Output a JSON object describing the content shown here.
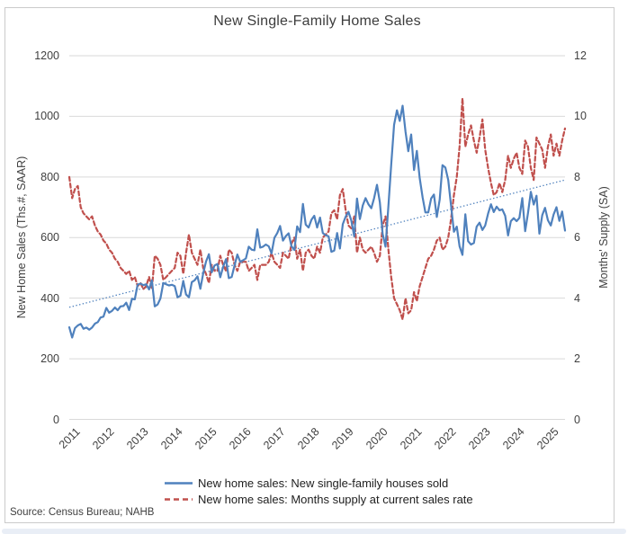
{
  "page": {
    "title": "New Single-Family Home Sales",
    "source_note": "Source: Census Bureau; NAHB"
  },
  "colors": {
    "sales": "#4F81BD",
    "supply": "#C0504D",
    "trend": "#4F81BD",
    "grid": "#D9D9D9",
    "text": "#404040"
  },
  "legend": {
    "sales_label": "New home sales: New single-family houses sold",
    "supply_label": "New home sales: Months supply at current sales rate"
  },
  "chart_data": {
    "type": "line",
    "title": "New Single-Family Home Sales",
    "frequency": "monthly",
    "x_start": "2011-01",
    "x_end": "2025-07",
    "x_tick_years": [
      "2011",
      "2012",
      "2013",
      "2014",
      "2015",
      "2016",
      "2017",
      "2018",
      "2019",
      "2020",
      "2021",
      "2022",
      "2023",
      "2024",
      "2025"
    ],
    "grid": "horizontal",
    "legend_position": "bottom",
    "left_axis": {
      "label": "New Home Sales (Ths.#, SAAR)",
      "min": 0,
      "max": 1200,
      "ticks": [
        0,
        200,
        400,
        600,
        800,
        1000,
        1200
      ]
    },
    "right_axis": {
      "label": "Months' Supply (SA)",
      "min": 0,
      "max": 12,
      "ticks": [
        0,
        2,
        4,
        6,
        8,
        10,
        12
      ]
    },
    "series": [
      {
        "name": "New home sales: New single-family houses sold",
        "axis": "left",
        "style": "solid",
        "color": "#4F81BD",
        "values": [
          304,
          270,
          301,
          310,
          315,
          299,
          303,
          296,
          303,
          316,
          321,
          336,
          339,
          368,
          352,
          358,
          369,
          360,
          373,
          374,
          385,
          361,
          398,
          396,
          445,
          448,
          443,
          446,
          429,
          459,
          373,
          379,
          399,
          450,
          446,
          442,
          444,
          440,
          403,
          408,
          457,
          412,
          403,
          453,
          459,
          472,
          431,
          481,
          521,
          545,
          485,
          508,
          513,
          469,
          503,
          529,
          466,
          470,
          508,
          544,
          520,
          525,
          531,
          570,
          560,
          558,
          627,
          567,
          570,
          577,
          571,
          548,
          599,
          615,
          638,
          590,
          605,
          614,
          571,
          559,
          637,
          618,
          711,
          643,
          633,
          659,
          672,
          633,
          666,
          615,
          608,
          604,
          553,
          557,
          615,
          564,
          644,
          669,
          685,
          656,
          604,
          729,
          661,
          706,
          730,
          710,
          697,
          730,
          774,
          716,
          612,
          570,
          704,
          840,
          972,
          1020,
          985,
          1035,
          950,
          885,
          940,
          823,
          886,
          796,
          733,
          683,
          683,
          729,
          742,
          668,
          725,
          839,
          831,
          790,
          707,
          619,
          636,
          571,
          543,
          677,
          588,
          577,
          582,
          636,
          649,
          625,
          640,
          679,
          710,
          684,
          702,
          690,
          693,
          672,
          607,
          654,
          664,
          654,
          665,
          730,
          621,
          680,
          751,
          709,
          738,
          613,
          674,
          698,
          657,
          640,
          676,
          700,
          655,
          686,
          623
        ]
      },
      {
        "name": "New home sales: Months supply at current sales rate",
        "axis": "right",
        "style": "dashed",
        "color": "#C0504D",
        "values": [
          8.0,
          7.3,
          7.6,
          7.7,
          7.0,
          6.8,
          6.7,
          6.6,
          6.7,
          6.4,
          6.2,
          6.1,
          5.9,
          5.8,
          5.6,
          5.5,
          5.3,
          5.2,
          5.0,
          4.9,
          4.8,
          4.9,
          4.6,
          4.7,
          4.4,
          4.5,
          4.3,
          4.4,
          4.7,
          4.3,
          5.4,
          5.3,
          5.1,
          4.6,
          4.7,
          4.8,
          4.9,
          5.0,
          5.5,
          5.4,
          4.8,
          5.5,
          6.1,
          5.5,
          5.3,
          5.1,
          5.6,
          5.0,
          4.8,
          4.5,
          5.1,
          4.9,
          4.9,
          5.4,
          5.1,
          4.9,
          5.6,
          5.5,
          5.1,
          4.9,
          5.2,
          5.2,
          5.2,
          4.9,
          5.0,
          5.1,
          4.6,
          5.1,
          5.1,
          5.1,
          5.2,
          5.5,
          5.2,
          5.1,
          5.0,
          5.5,
          5.4,
          5.3,
          5.8,
          6.0,
          5.3,
          5.6,
          4.9,
          5.5,
          5.6,
          5.4,
          5.3,
          5.7,
          5.5,
          6.0,
          6.1,
          6.2,
          6.8,
          6.9,
          6.6,
          7.4,
          7.6,
          6.9,
          6.4,
          6.3,
          6.7,
          5.5,
          6.0,
          5.6,
          5.5,
          5.6,
          5.7,
          5.5,
          5.2,
          5.4,
          6.4,
          6.7,
          5.6,
          4.7,
          4.0,
          3.8,
          3.6,
          3.3,
          4.0,
          3.5,
          3.6,
          4.2,
          3.9,
          4.4,
          4.7,
          5.0,
          5.3,
          5.4,
          5.6,
          5.9,
          6.0,
          5.6,
          5.7,
          6.0,
          6.6,
          7.4,
          8.0,
          9.0,
          10.6,
          9.0,
          9.4,
          9.7,
          9.2,
          8.8,
          9.3,
          9.9,
          8.9,
          8.3,
          7.8,
          7.4,
          7.5,
          7.8,
          7.5,
          7.9,
          8.7,
          8.3,
          8.6,
          8.8,
          8.3,
          8.1,
          9.2,
          9.0,
          8.3,
          7.9,
          9.3,
          9.1,
          8.9,
          8.3,
          9.0,
          9.4,
          8.7,
          9.1,
          8.7,
          9.2,
          9.6
        ]
      }
    ],
    "trend_line": {
      "name": "Linear trend of new home sales",
      "axis": "left",
      "style": "dotted",
      "color": "#4F81BD",
      "start_value": 370,
      "end_value": 790
    }
  }
}
